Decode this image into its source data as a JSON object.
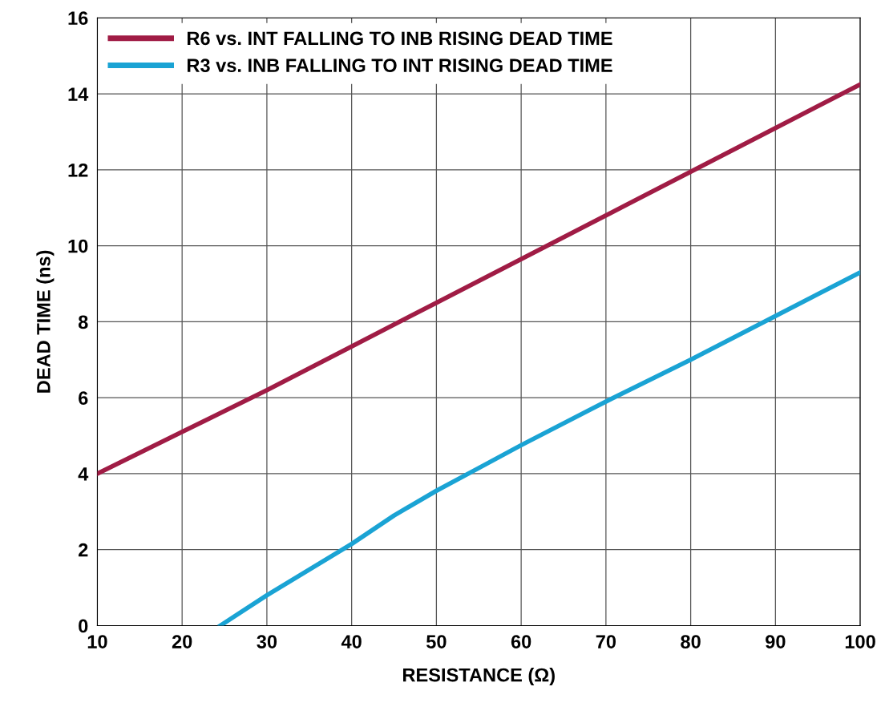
{
  "chart_data": {
    "type": "line",
    "xlabel": "RESISTANCE (Ω)",
    "ylabel": "DEAD TIME (ns)",
    "xlim": [
      10,
      100
    ],
    "xticks": [
      10,
      20,
      30,
      40,
      50,
      60,
      70,
      80,
      90,
      100
    ],
    "ylim": [
      0,
      16
    ],
    "yticks": [
      0,
      2,
      4,
      6,
      8,
      10,
      12,
      14,
      16
    ],
    "grid": true,
    "legend": "top left",
    "line_style": "solid",
    "marker": "none",
    "series": [
      {
        "name": "R6 vs. INT FALLING TO INB RISING DEAD TIME",
        "color": "#a01c45",
        "x": [
          10,
          20,
          30,
          40,
          50,
          60,
          70,
          80,
          90,
          100
        ],
        "values": [
          4.0,
          5.1,
          6.2,
          7.35,
          8.5,
          9.65,
          10.8,
          11.95,
          13.1,
          14.25
        ]
      },
      {
        "name": "R3 vs. INB FALLING TO INT RISING DEAD TIME",
        "color": "#1aa3d4",
        "x": [
          24.5,
          30,
          40,
          45,
          50,
          55,
          60,
          70,
          80,
          90,
          100
        ],
        "values": [
          0,
          0.8,
          2.15,
          2.9,
          3.55,
          4.15,
          4.75,
          5.9,
          7.0,
          8.15,
          9.3
        ]
      }
    ]
  }
}
